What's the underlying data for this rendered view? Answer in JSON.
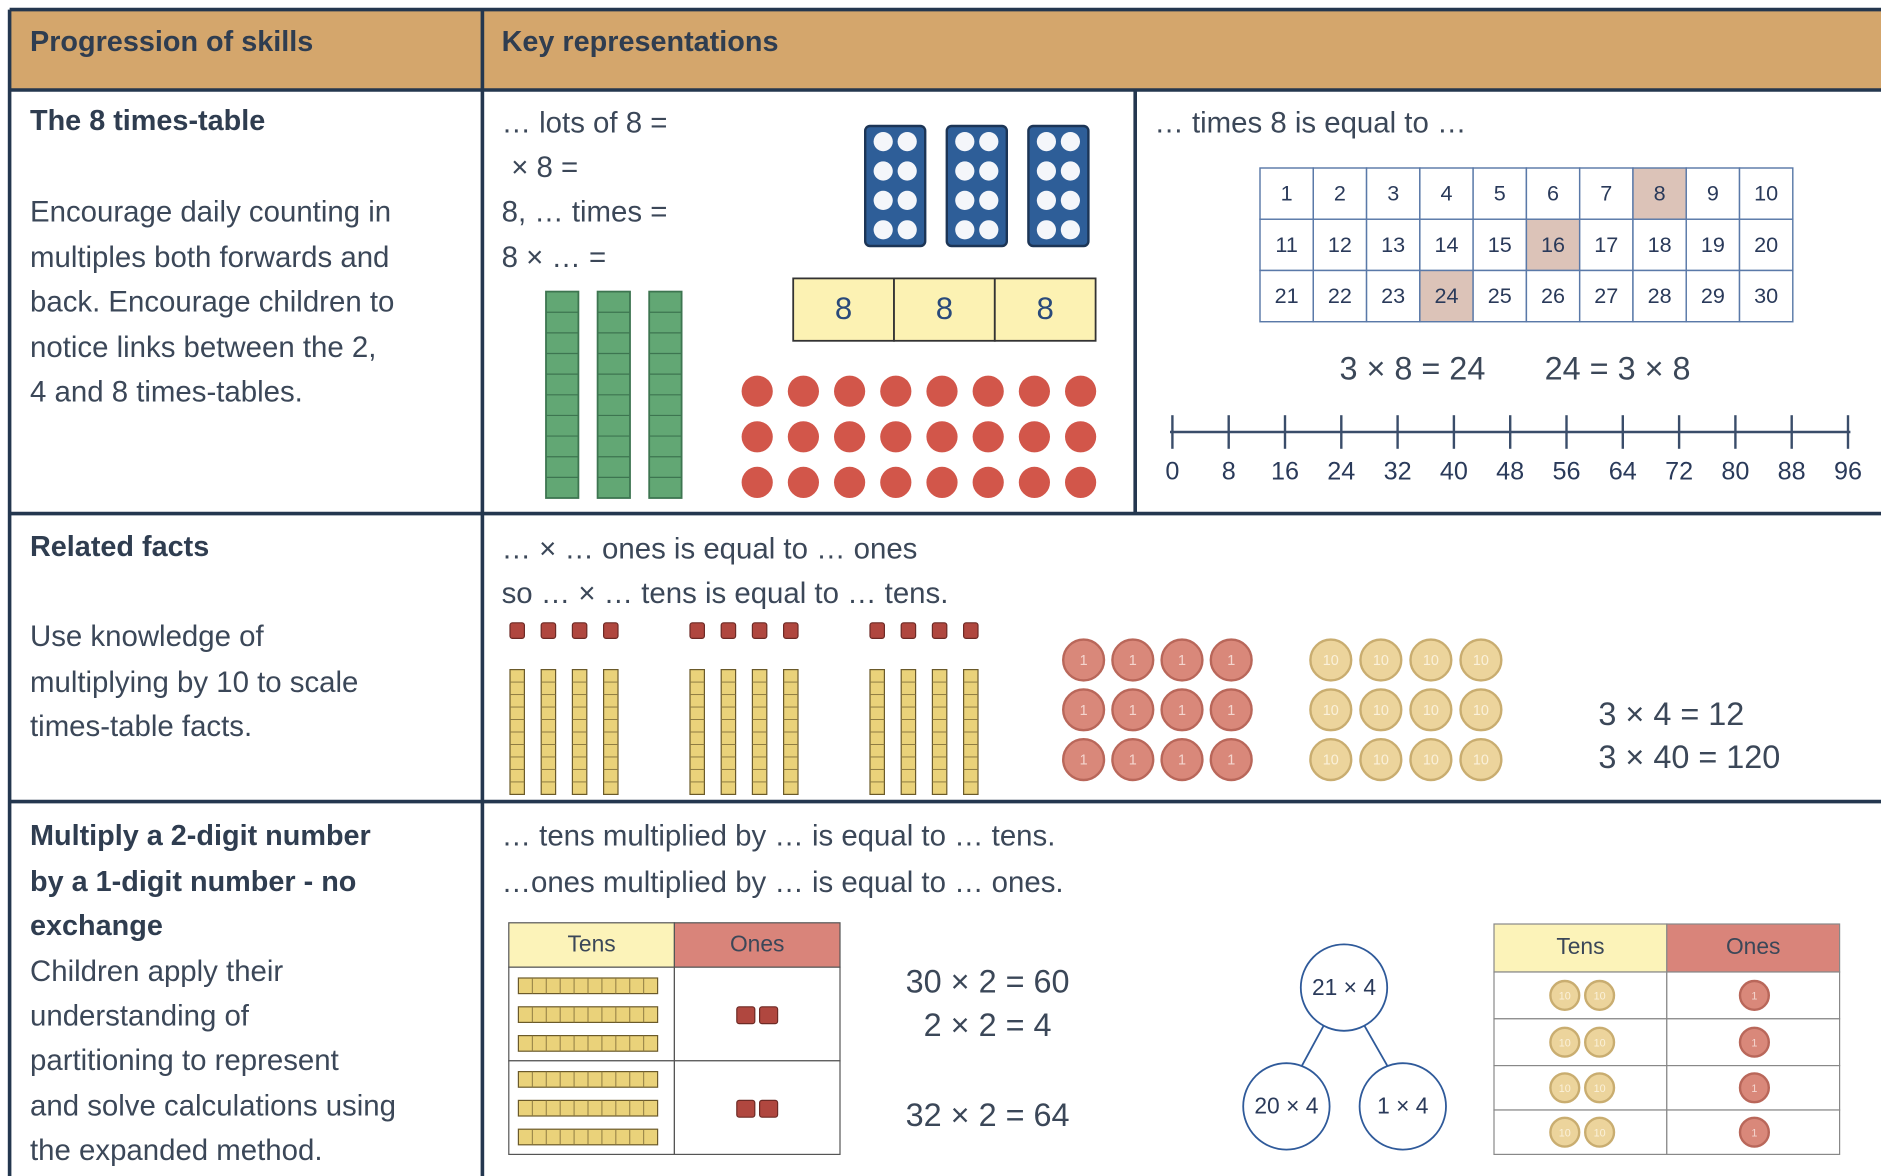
{
  "header": {
    "col1": "Progression of skills",
    "col2": "Key representations"
  },
  "rows": [
    {
      "title": [
        "The 8 times-table"
      ],
      "description": [
        "Encourage daily counting in",
        "multiples both forwards and",
        "back. Encourage children to",
        "notice links between the 2,",
        "4 and 8 times-tables."
      ],
      "stems": [
        "… lots of 8 =",
        "× 8 =",
        "8, … times =",
        "8 × … ="
      ],
      "bar_model": [
        "8",
        "8",
        "8"
      ],
      "hundred_square": {
        "caption": "… times 8 is equal to …",
        "cells": [
          1,
          2,
          3,
          4,
          5,
          6,
          7,
          8,
          9,
          10,
          11,
          12,
          13,
          14,
          15,
          16,
          17,
          18,
          19,
          20,
          21,
          22,
          23,
          24,
          25,
          26,
          27,
          28,
          29,
          30
        ],
        "highlighted": [
          8,
          16,
          24
        ]
      },
      "equations": [
        "3 × 8 = 24",
        "24 = 3 × 8"
      ],
      "number_line": [
        0,
        8,
        16,
        24,
        32,
        40,
        48,
        56,
        64,
        72,
        80,
        88,
        96
      ]
    },
    {
      "title": [
        "Related facts"
      ],
      "description": [
        "Use knowledge of",
        "multiplying by 10 to scale",
        "times-table facts."
      ],
      "stems": [
        "… × … ones is equal to … ones",
        "so … × … tens is equal to … tens."
      ],
      "coin_labels": {
        "one": "1",
        "ten": "10"
      },
      "equations": [
        "3 × 4 = 12",
        "3 × 40 = 120"
      ]
    },
    {
      "title": [
        "Multiply a 2-digit number",
        "by a 1-digit number - no",
        "exchange"
      ],
      "description": [
        "Children apply their",
        "understanding of",
        "partitioning to represent",
        "and solve calculations using",
        "the expanded method."
      ],
      "stems": [
        "… tens multiplied by … is equal to … tens.",
        "…ones multiplied by … is equal to … ones."
      ],
      "place_value": {
        "headers": [
          "Tens",
          "Ones"
        ]
      },
      "equations": [
        "30 × 2 = 60",
        "2 × 2 = 4",
        "32 × 2 = 64"
      ],
      "part_whole": {
        "whole": "21 × 4",
        "parts": [
          "20 × 4",
          "1 × 4"
        ]
      },
      "place_value_2": {
        "headers": [
          "Tens",
          "Ones"
        ]
      }
    }
  ]
}
